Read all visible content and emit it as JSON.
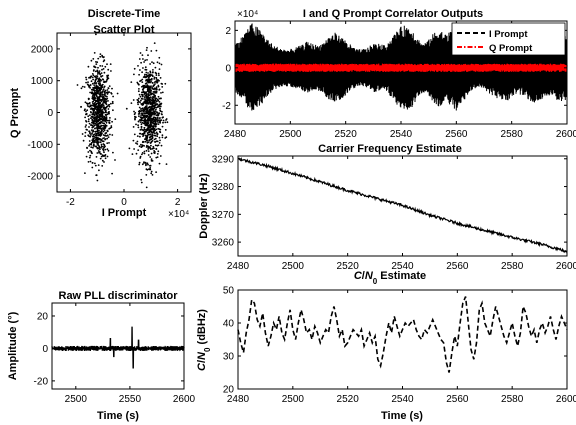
{
  "chart_data": [
    {
      "type": "scatter",
      "title": "Discrete-Time Scatter Plot",
      "xlabel": "I Prompt",
      "ylabel": "Q Prompt",
      "x_exponent": "×10⁴",
      "xlim": [
        -2.5,
        2.5
      ],
      "ylim": [
        -2500,
        2500
      ],
      "xticks": [
        -2,
        0,
        2
      ],
      "xtick_labels": [
        "-2",
        "0",
        "2"
      ],
      "yticks": [
        -2000,
        -1000,
        0,
        1000,
        2000
      ],
      "ytick_labels": [
        "-2000",
        "-1000",
        "0",
        "1000",
        "2000"
      ],
      "clusters": [
        {
          "center": [
            -0.95,
            0
          ],
          "spread": [
            0.5,
            750
          ],
          "count": 900
        },
        {
          "center": [
            0.95,
            0
          ],
          "spread": [
            0.5,
            750
          ],
          "count": 900
        }
      ],
      "color": "#000000"
    },
    {
      "type": "line",
      "title": "I and Q Prompt Correlator Outputs",
      "y_exponent": "×10⁴",
      "xlim": [
        2480,
        2600
      ],
      "ylim": [
        -3,
        2.5
      ],
      "xticks": [
        2480,
        2500,
        2520,
        2540,
        2560,
        2580,
        2600
      ],
      "xtick_labels": [
        "2480",
        "2500",
        "2520",
        "2540",
        "2560",
        "2580",
        "2600"
      ],
      "yticks": [
        -2,
        0,
        2
      ],
      "ytick_labels": [
        "-2",
        "0",
        "2"
      ],
      "legend": "top-right",
      "series": [
        {
          "name": "I Prompt",
          "color": "#000000",
          "dash": "dashed",
          "envelope_x": [
            2480,
            2482,
            2484,
            2486,
            2488,
            2490,
            2492,
            2494,
            2496,
            2498,
            2500,
            2502,
            2504,
            2506,
            2508,
            2510,
            2512,
            2514,
            2516,
            2518,
            2520,
            2522,
            2524,
            2526,
            2528,
            2530,
            2532,
            2534,
            2536,
            2538,
            2540,
            2542,
            2544,
            2546,
            2548,
            2550,
            2552,
            2554,
            2556,
            2558,
            2560,
            2562,
            2564,
            2566,
            2568,
            2570,
            2572,
            2574,
            2576,
            2578,
            2580,
            2582,
            2584,
            2586,
            2588,
            2590,
            2592,
            2594,
            2596,
            2598,
            2600
          ],
          "envelope": [
            1.3,
            1.6,
            2.0,
            2.4,
            2.2,
            1.9,
            1.5,
            1.2,
            1.1,
            1.0,
            1.0,
            1.1,
            1.2,
            1.4,
            1.3,
            1.2,
            1.4,
            1.7,
            1.9,
            1.7,
            1.5,
            1.2,
            1.0,
            1.0,
            1.1,
            1.3,
            1.3,
            1.2,
            1.5,
            1.9,
            2.2,
            2.3,
            2.1,
            1.6,
            1.3,
            1.5,
            1.9,
            2.1,
            1.8,
            2.0,
            2.3,
            1.9,
            1.5,
            1.2,
            1.0,
            1.1,
            1.4,
            1.6,
            1.7,
            1.8,
            1.6,
            1.4,
            1.5,
            1.7,
            1.9,
            1.8,
            1.6,
            1.5,
            1.7,
            1.8,
            1.7
          ]
        },
        {
          "name": "Q Prompt",
          "color": "#ff0000",
          "dash": "dash-dot",
          "amplitude": 0.22
        }
      ]
    },
    {
      "type": "line",
      "title": "Carrier Frequency Estimate",
      "ylabel": "Doppler (Hz)",
      "xlim": [
        2480,
        2600
      ],
      "ylim": [
        3255,
        3291
      ],
      "xticks": [
        2480,
        2500,
        2520,
        2540,
        2560,
        2580,
        2600
      ],
      "xtick_labels": [
        "2480",
        "2500",
        "2520",
        "2540",
        "2560",
        "2580",
        "2600"
      ],
      "yticks": [
        3260,
        3270,
        3280,
        3290
      ],
      "ytick_labels": [
        "3260",
        "3270",
        "3280",
        "3290"
      ],
      "series": [
        {
          "color": "#000000",
          "x": [
            2480,
            2490,
            2500,
            2510,
            2520,
            2530,
            2540,
            2550,
            2560,
            2570,
            2580,
            2590,
            2598,
            2600
          ],
          "y": [
            3290,
            3287.6,
            3284.7,
            3281.7,
            3278.6,
            3275.9,
            3273.2,
            3269.7,
            3266.8,
            3264.2,
            3261.7,
            3259.4,
            3257.2,
            3256.3
          ]
        }
      ]
    },
    {
      "type": "line",
      "title": "Raw PLL discriminator",
      "xlabel": "Time (s)",
      "ylabel": "Amplitude (°)",
      "xlim": [
        2478,
        2600
      ],
      "ylim": [
        -25,
        28
      ],
      "xticks": [
        2500,
        2550,
        2600
      ],
      "xtick_labels": [
        "2500",
        "2550",
        "2600"
      ],
      "yticks": [
        -20,
        0,
        20
      ],
      "ytick_labels": [
        "-20",
        "0",
        "20"
      ],
      "noise_amplitude": 1.6,
      "spikes": [
        {
          "x": 2532,
          "y": 6
        },
        {
          "x": 2535,
          "y": -5
        },
        {
          "x": 2552,
          "y": 13
        },
        {
          "x": 2553,
          "y": -12
        },
        {
          "x": 2558,
          "y": 5
        }
      ],
      "color": "#000000"
    },
    {
      "type": "line",
      "title": "C/N₀ Estimate",
      "xlabel": "Time (s)",
      "ylabel": "C/N₀ (dBHz)",
      "xlim": [
        2480,
        2600
      ],
      "ylim": [
        20,
        50
      ],
      "xticks": [
        2480,
        2500,
        2520,
        2540,
        2560,
        2580,
        2600
      ],
      "xtick_labels": [
        "2480",
        "2500",
        "2520",
        "2540",
        "2560",
        "2580",
        "2600"
      ],
      "yticks": [
        20,
        30,
        40,
        50
      ],
      "ytick_labels": [
        "20",
        "30",
        "40",
        "50"
      ],
      "series": [
        {
          "color": "#000000",
          "dash": "dashed",
          "x": [
            2480,
            2481,
            2482,
            2483,
            2484,
            2485,
            2486,
            2487,
            2488,
            2489,
            2490,
            2491,
            2492,
            2493,
            2494,
            2495,
            2496,
            2497,
            2498,
            2499,
            2500,
            2501,
            2502,
            2503,
            2504,
            2505,
            2506,
            2507,
            2508,
            2509,
            2510,
            2511,
            2512,
            2513,
            2514,
            2515,
            2516,
            2517,
            2518,
            2519,
            2520,
            2521,
            2522,
            2523,
            2524,
            2525,
            2526,
            2527,
            2528,
            2529,
            2530,
            2531,
            2532,
            2533,
            2534,
            2535,
            2536,
            2537,
            2538,
            2539,
            2540,
            2541,
            2542,
            2543,
            2544,
            2545,
            2546,
            2547,
            2548,
            2549,
            2550,
            2551,
            2552,
            2553,
            2554,
            2555,
            2556,
            2557,
            2558,
            2559,
            2560,
            2561,
            2562,
            2563,
            2564,
            2565,
            2566,
            2567,
            2568,
            2569,
            2570,
            2571,
            2572,
            2573,
            2574,
            2575,
            2576,
            2577,
            2578,
            2579,
            2580,
            2581,
            2582,
            2583,
            2584,
            2585,
            2586,
            2587,
            2588,
            2589,
            2590,
            2591,
            2592,
            2593,
            2594,
            2595,
            2596,
            2597,
            2598,
            2599,
            2600
          ],
          "y": [
            38,
            34,
            31,
            37,
            41,
            47,
            46,
            41,
            39,
            43,
            37,
            33,
            36,
            40,
            38,
            42,
            37,
            35,
            40,
            44,
            38,
            35,
            40,
            44,
            41,
            37,
            38,
            35,
            39,
            37,
            34,
            36,
            38,
            37,
            42,
            45,
            41,
            36,
            38,
            33,
            34,
            36,
            38,
            37,
            36,
            38,
            33,
            35,
            37,
            34,
            36,
            29,
            27,
            31,
            36,
            40,
            37,
            42,
            39,
            36,
            38,
            40,
            39,
            40,
            41,
            38,
            36,
            35,
            38,
            37,
            39,
            41,
            39,
            37,
            35,
            34,
            28,
            25,
            31,
            36,
            33,
            40,
            46,
            48,
            40,
            32,
            29,
            34,
            44,
            46,
            40,
            38,
            36,
            41,
            45,
            42,
            39,
            36,
            34,
            37,
            40,
            36,
            33,
            37,
            45,
            43,
            39,
            36,
            38,
            34,
            38,
            40,
            37,
            39,
            42,
            38,
            35,
            39,
            42,
            40,
            38
          ]
        }
      ]
    }
  ]
}
